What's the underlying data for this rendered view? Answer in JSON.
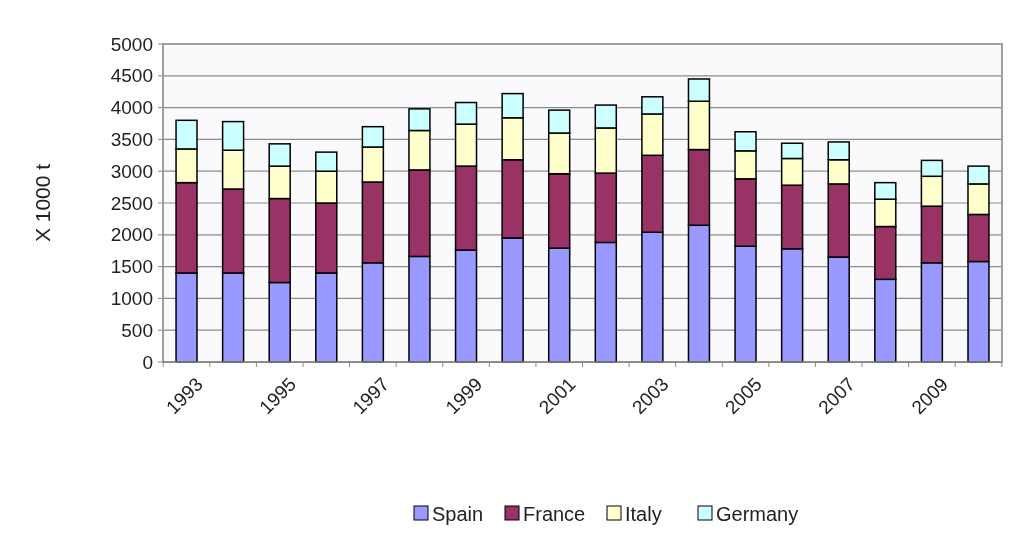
{
  "chart_data": {
    "type": "bar",
    "stacked": true,
    "ylabel": "X 1000 t",
    "categories": [
      "1993",
      null,
      "1995",
      null,
      "1997",
      null,
      "1999",
      null,
      "2001",
      null,
      "2003",
      null,
      "2005",
      null,
      "2007",
      null,
      "2009",
      null
    ],
    "series": [
      {
        "name": "Spain",
        "color": "#9999ff",
        "values": [
          1400,
          1400,
          1250,
          1400,
          1560,
          1660,
          1760,
          1950,
          1790,
          1880,
          2040,
          2150,
          1820,
          1780,
          1650,
          1300,
          1560,
          1580
        ]
      },
      {
        "name": "France",
        "color": "#993366",
        "values": [
          1420,
          1320,
          1320,
          1100,
          1270,
          1360,
          1320,
          1230,
          1170,
          1090,
          1210,
          1190,
          1060,
          1000,
          1150,
          830,
          890,
          740
        ]
      },
      {
        "name": "Italy",
        "color": "#ffffcc",
        "values": [
          530,
          610,
          510,
          500,
          550,
          620,
          660,
          660,
          640,
          710,
          650,
          760,
          440,
          420,
          380,
          430,
          470,
          480
        ]
      },
      {
        "name": "Germany",
        "color": "#ccffff",
        "values": [
          450,
          450,
          350,
          300,
          320,
          340,
          340,
          380,
          360,
          360,
          270,
          350,
          300,
          240,
          280,
          260,
          250,
          280
        ]
      }
    ],
    "ylim": [
      0,
      5000
    ],
    "yticks": [
      0,
      500,
      1000,
      1500,
      2000,
      2500,
      3000,
      3500,
      4000,
      4500,
      5000
    ],
    "grid": "y",
    "legend": "bottom"
  }
}
